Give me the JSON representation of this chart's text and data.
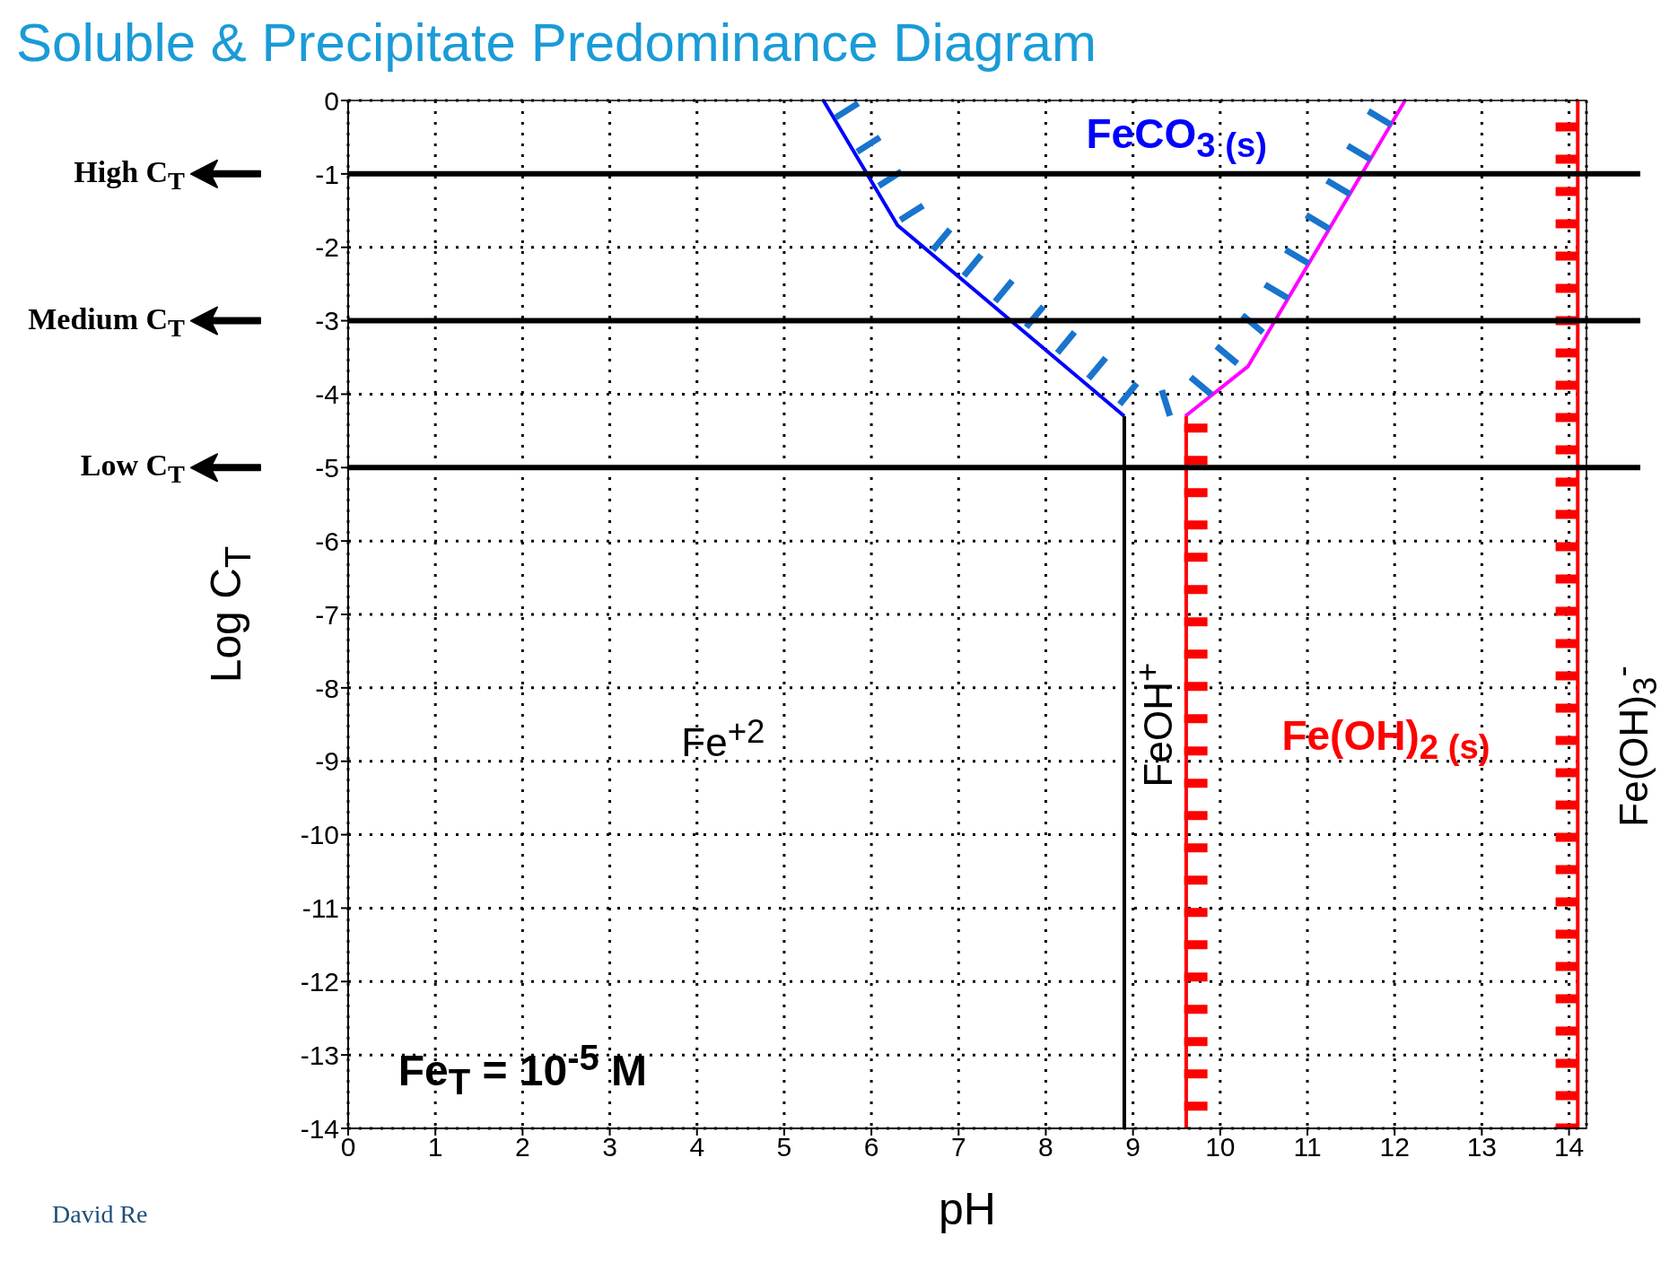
{
  "chart_data": {
    "type": "line",
    "title": "Soluble & Precipitate Predominance Diagram",
    "xlabel": "pH",
    "ylabel": "Log C$_{T}$",
    "xlim": [
      0,
      14.2
    ],
    "xticks": [
      0,
      1,
      2,
      3,
      4,
      5,
      6,
      7,
      8,
      9,
      10,
      11,
      12,
      13,
      14
    ],
    "ylim": [
      -14,
      0
    ],
    "yticks": [
      -14,
      -13,
      -12,
      -11,
      -10,
      -9,
      -8,
      -7,
      -6,
      -5,
      -4,
      -3,
      -2,
      -1,
      0
    ],
    "grid": true,
    "marker": "none",
    "series": [
      {
        "color": "#0000ff",
        "line_style": "solid",
        "x": [
          5.45,
          6.3,
          8.9
        ],
        "values": [
          0,
          -1.7,
          -4.3
        ]
      },
      {
        "color": "#000000",
        "line_style": "solid",
        "x": [
          8.9,
          8.9
        ],
        "values": [
          -4.3,
          -14
        ]
      },
      {
        "color": "#ff00ff",
        "line_style": "solid",
        "x": [
          9.6,
          10.32,
          12.12
        ],
        "values": [
          -4.3,
          -3.62,
          0
        ]
      },
      {
        "color": "#ff0000",
        "line_style": "solid",
        "x": [
          9.61,
          9.61
        ],
        "values": [
          -4.3,
          -14
        ]
      },
      {
        "color": "#ff0000",
        "line_style": "solid",
        "x": [
          14.1,
          14.1
        ],
        "values": [
          0,
          -14
        ]
      },
      {
        "color": "#1874cd",
        "line_style": "dashed",
        "x": [
          5.7,
          6.5,
          9.0,
          9.3,
          9.7,
          10.55,
          11.9
        ],
        "values": [
          -0.1,
          -1.6,
          -4.05,
          -4.15,
          -4.0,
          -2.79,
          -0.1
        ]
      },
      {
        "color": "#ff0000",
        "line_style": "dashed",
        "x": [
          9.72,
          9.72
        ],
        "values": [
          -4.4,
          -14
        ]
      },
      {
        "color": "#ff0000",
        "line_style": "dashed",
        "x": [
          13.98,
          13.98
        ],
        "values": [
          -0.3,
          -14
        ]
      }
    ],
    "ref_lines": [
      {
        "axis": "y",
        "value": -1,
        "label": "High C$_{T}$",
        "color": "#000000"
      },
      {
        "axis": "y",
        "value": -3,
        "label": "Medium C$_{T}$",
        "color": "#000000"
      },
      {
        "axis": "y",
        "value": -5,
        "label": "Low C$_{T}$",
        "color": "#000000"
      }
    ],
    "annotations": [
      "FeCO$_{3 (s)}$",
      "Fe$^{+2}$",
      "FeOH$^{+}$",
      "Fe(OH)$_{2 (s)}$",
      "Fe(OH)$_{3}$$^{-}$",
      "Fe$_{T}$ = 10$^{-5}$ M",
      "David Re"
    ]
  }
}
